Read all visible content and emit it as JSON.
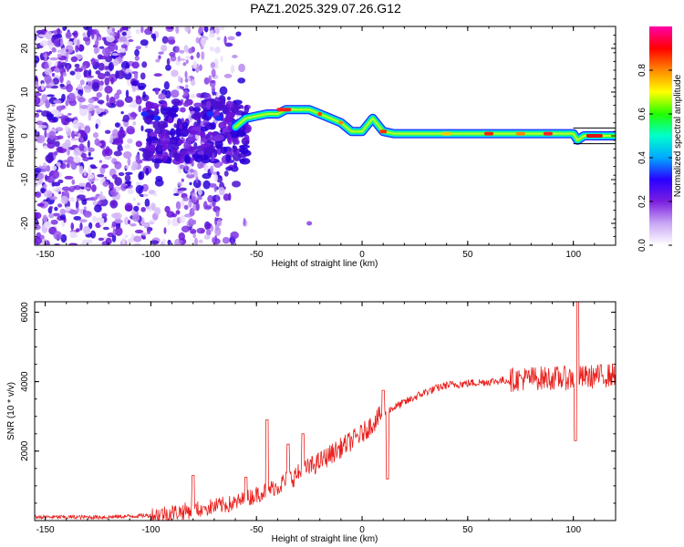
{
  "title": "PAZ1.2025.329.07.26.G12",
  "chart_data": [
    {
      "type": "heatmap",
      "name": "spectrogram",
      "xlabel": "Height of straight line (km)",
      "ylabel": "Frequency (Hz)",
      "xlim": [
        -155,
        120
      ],
      "ylim": [
        -25,
        25
      ],
      "xticks": [
        -150,
        -100,
        -50,
        0,
        50,
        100
      ],
      "yticks": [
        -20,
        -10,
        0,
        10,
        20
      ],
      "ridge_path": {
        "x": [
          -60,
          -55,
          -50,
          -45,
          -40,
          -36,
          -25,
          -20,
          -15,
          -10,
          -5,
          0,
          5,
          10,
          15,
          25,
          50,
          75,
          100,
          102,
          105,
          120
        ],
        "freq": [
          2,
          4,
          4.5,
          5,
          5,
          6,
          6,
          5,
          4,
          3,
          1,
          1,
          4,
          1,
          0.5,
          0.5,
          0.5,
          0.5,
          0.5,
          -1,
          0,
          0
        ]
      },
      "colorbar": {
        "label": "Normalized spectral amplitude",
        "range": [
          0,
          1
        ],
        "ticks": [
          "0.0",
          "0.2",
          "0.4",
          "0.6",
          "0.8"
        ],
        "colormap": [
          "#ffffff",
          "#c9a6f5",
          "#7b1fe0",
          "#2a00ff",
          "#00a8ff",
          "#00ffcc",
          "#22ff00",
          "#ffff00",
          "#ff8800",
          "#ff0000",
          "#ff00aa"
        ]
      }
    },
    {
      "type": "line",
      "name": "snr",
      "xlabel": "Height of straight line (km)",
      "ylabel": "SNR (10 * v/v)",
      "xlim": [
        -155,
        120
      ],
      "ylim": [
        0,
        6300
      ],
      "xticks": [
        -150,
        -100,
        -50,
        0,
        50,
        100
      ],
      "yticks": [
        2000,
        4000,
        6000
      ],
      "color": "#e8201d",
      "trend": {
        "x": [
          -155,
          -120,
          -100,
          -80,
          -60,
          -40,
          -20,
          0,
          10,
          20,
          30,
          40,
          60,
          80,
          100,
          120
        ],
        "y": [
          100,
          100,
          150,
          300,
          500,
          1000,
          1700,
          2500,
          3100,
          3400,
          3700,
          3900,
          4000,
          4100,
          4100,
          4200
        ]
      },
      "spikes": [
        {
          "x": -80,
          "y": 1300
        },
        {
          "x": -75,
          "y": 400
        },
        {
          "x": -55,
          "y": 1250
        },
        {
          "x": -45,
          "y": 2900
        },
        {
          "x": -35,
          "y": 2200
        },
        {
          "x": -28,
          "y": 2500
        },
        {
          "x": 10,
          "y": 3750
        },
        {
          "x": 12,
          "y": 1200
        },
        {
          "x": 102,
          "y": 6300
        },
        {
          "x": 101,
          "y": 2300
        }
      ]
    }
  ]
}
